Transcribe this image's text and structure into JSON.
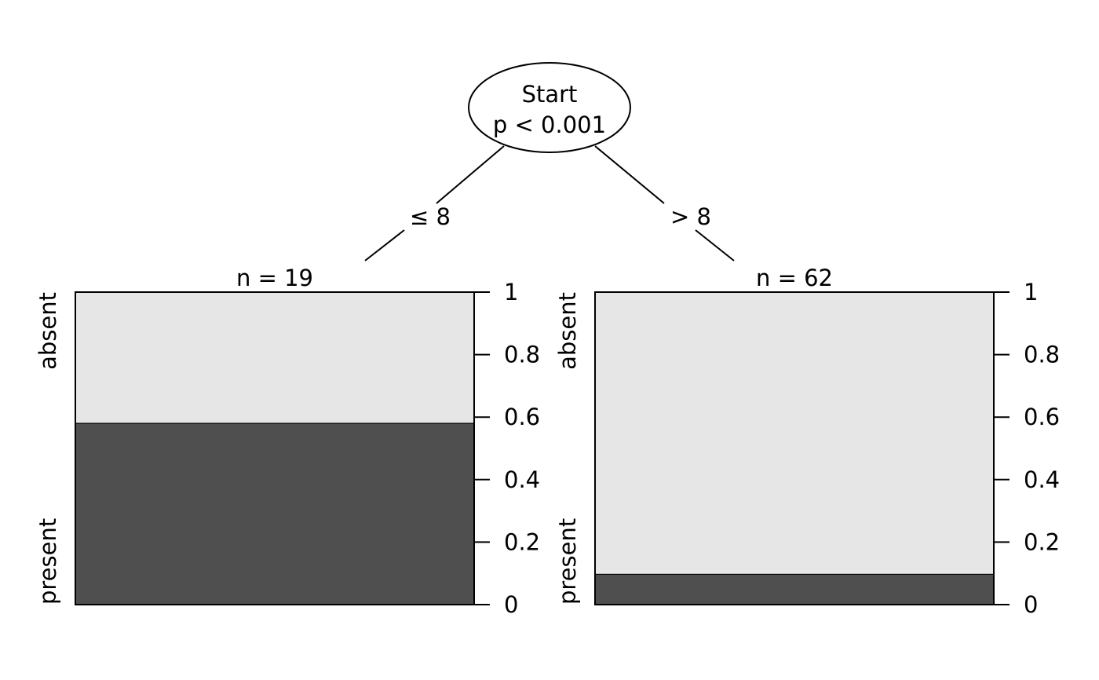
{
  "root": {
    "variable": "Start",
    "p_label": "p < 0.001"
  },
  "edges": {
    "left_label": "≤ 8",
    "right_label": "> 8"
  },
  "leaf_axis": {
    "ticks": [
      "0",
      "0.2",
      "0.4",
      "0.6",
      "0.8",
      "1"
    ],
    "categories": [
      "absent",
      "present"
    ]
  },
  "colors": {
    "absent": "#e6e6e6",
    "present": "#4f4f4f"
  },
  "chart_data": {
    "type": "bar",
    "title": "",
    "ylim": [
      0,
      1
    ],
    "leaves": [
      {
        "n_label": "n = 19",
        "absent": 0.42,
        "present": 0.58
      },
      {
        "n_label": "n = 62",
        "absent": 0.903,
        "present": 0.097
      }
    ]
  }
}
